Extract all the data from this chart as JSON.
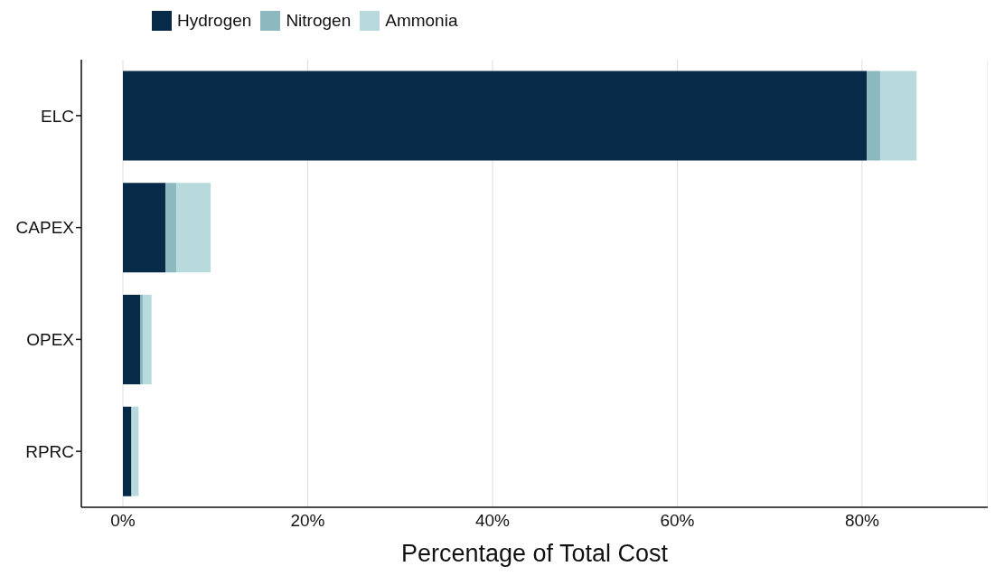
{
  "chart_data": {
    "type": "bar",
    "orientation": "horizontal",
    "stacked": true,
    "xlabel": "Percentage of Total Cost",
    "categories": [
      "ELC",
      "CAPEX",
      "OPEX",
      "RPRC"
    ],
    "series": [
      {
        "name": "Hydrogen",
        "color": "#062a47",
        "values": [
          80.5,
          4.6,
          1.9,
          0.9
        ]
      },
      {
        "name": "Nitrogen",
        "color": "#8bb9bf",
        "values": [
          1.5,
          1.2,
          0.3,
          0.1
        ]
      },
      {
        "name": "Ammonia",
        "color": "#b9dadc",
        "values": [
          3.9,
          3.7,
          0.9,
          0.7
        ]
      }
    ],
    "xlim": [
      -4.5,
      93.6
    ],
    "xticks": [
      {
        "value": 0,
        "label": "0%"
      },
      {
        "value": 20,
        "label": "20%"
      },
      {
        "value": 40,
        "label": "40%"
      },
      {
        "value": 60,
        "label": "60%"
      },
      {
        "value": 80,
        "label": "80%"
      }
    ],
    "grid": "x",
    "legend": "top"
  }
}
